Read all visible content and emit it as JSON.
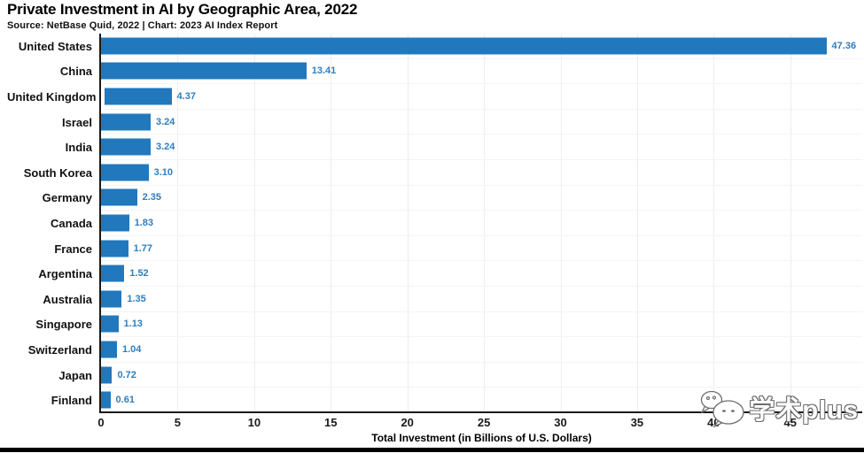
{
  "header": {
    "title": "Private Investment in AI by Geographic Area, 2022",
    "subtitle": "Source: NetBase Quid, 2022 | Chart: 2023 AI Index Report"
  },
  "chart_data": {
    "type": "bar",
    "orientation": "horizontal",
    "title": "Private Investment in AI by Geographic Area, 2022",
    "source": "NetBase Quid, 2022",
    "chart_credit": "2023 AI Index Report",
    "categories": [
      "United States",
      "China",
      "United Kingdom",
      "Israel",
      "India",
      "South Korea",
      "Germany",
      "Canada",
      "France",
      "Argentina",
      "Australia",
      "Singapore",
      "Switzerland",
      "Japan",
      "Finland"
    ],
    "values": [
      47.36,
      13.41,
      4.37,
      3.24,
      3.24,
      3.1,
      2.35,
      1.83,
      1.77,
      1.52,
      1.35,
      1.13,
      1.04,
      0.72,
      0.61
    ],
    "value_labels": [
      "47.36",
      "13.41",
      "4.37",
      "3.24",
      "3.24",
      "3.10",
      "2.35",
      "1.83",
      "1.77",
      "1.52",
      "1.35",
      "1.13",
      "1.04",
      "0.72",
      "0.61"
    ],
    "x_ticks": [
      0,
      5,
      10,
      15,
      20,
      25,
      30,
      35,
      40,
      45
    ],
    "xlabel": "Total Investment (in Billions of U.S. Dollars)",
    "ylabel": "",
    "xlim": [
      0,
      49.7
    ],
    "grid": true,
    "legend": "none",
    "bar_color": "#2178bd",
    "value_label_color": "#2e7ebd",
    "axis_color": "#1a1a1a",
    "gridline_color": "#ededed"
  },
  "watermark": {
    "label": "学术plus",
    "icon": "wechat-icon"
  }
}
